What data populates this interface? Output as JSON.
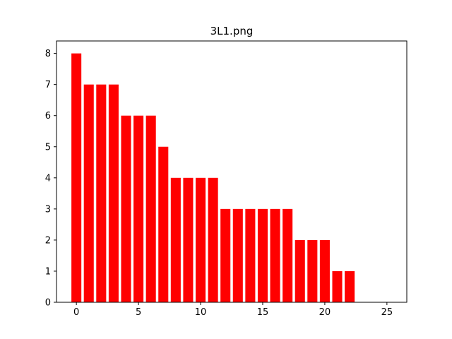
{
  "chart_data": {
    "type": "bar",
    "title": "3L1.png",
    "xlabel": "",
    "ylabel": "",
    "x": [
      0,
      1,
      2,
      3,
      4,
      5,
      6,
      7,
      8,
      9,
      10,
      11,
      12,
      13,
      14,
      15,
      16,
      17,
      18,
      19,
      20,
      21,
      22
    ],
    "values": [
      8,
      7,
      7,
      7,
      6,
      6,
      6,
      5,
      4,
      4,
      4,
      4,
      3,
      3,
      3,
      3,
      3,
      3,
      2,
      2,
      2,
      1,
      1
    ],
    "xlim": [
      -1.6,
      26.6
    ],
    "ylim": [
      0,
      8.4
    ],
    "xticks": [
      0,
      5,
      10,
      15,
      20,
      25
    ],
    "yticks": [
      0,
      1,
      2,
      3,
      4,
      5,
      6,
      7,
      8
    ],
    "bar_color": "#ff0000",
    "grid": false
  }
}
